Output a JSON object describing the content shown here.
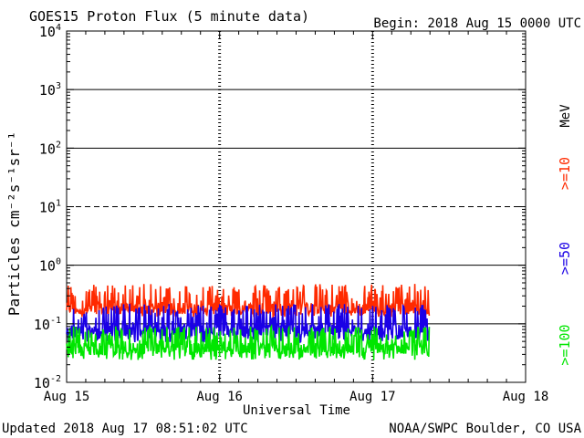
{
  "chart_data": {
    "type": "line",
    "title": "GOES15 Proton Flux (5 minute data)",
    "begin_label": "Begin: 2018 Aug 15 0000 UTC",
    "xlabel": "Universal Time",
    "ylabel": "Particles cm⁻²s⁻¹sr⁻¹",
    "x_ticks": [
      "Aug 15",
      "Aug 16",
      "Aug 17",
      "Aug 18"
    ],
    "xlim_days": [
      0,
      3
    ],
    "data_end_day": 2.37,
    "y_scale": "log",
    "ylim": [
      0.01,
      10000
    ],
    "y_ticks": [
      {
        "base": "10",
        "exp": "4"
      },
      {
        "base": "10",
        "exp": "3"
      },
      {
        "base": "10",
        "exp": "2"
      },
      {
        "base": "10",
        "exp": "1"
      },
      {
        "base": "10",
        "exp": "0"
      },
      {
        "base": "10",
        "exp": "-1"
      },
      {
        "base": "10",
        "exp": "-2"
      }
    ],
    "unit_label": "MeV",
    "series": [
      {
        "name": ">=10",
        "label": ">=10",
        "color": "#ff2a00",
        "base": 0.17,
        "low": 0.13,
        "high": 0.48
      },
      {
        "name": ">=50",
        "label": ">=50",
        "color": "#1a00e6",
        "base": 0.072,
        "low": 0.048,
        "high": 0.22
      },
      {
        "name": ">=100",
        "label": ">=100",
        "color": "#00e600",
        "base": 0.035,
        "low": 0.024,
        "high": 0.09
      }
    ],
    "footer_left": "Updated 2018 Aug 17 08:51:02 UTC",
    "footer_right": "NOAA/SWPC Boulder, CO USA"
  }
}
